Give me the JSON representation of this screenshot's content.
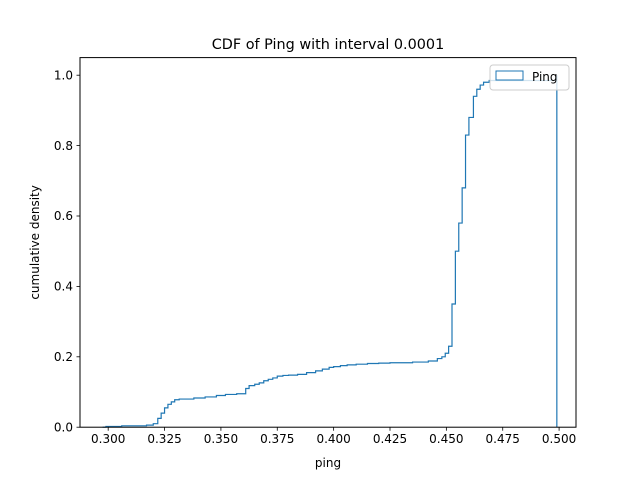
{
  "chart_data": {
    "type": "line",
    "subtype": "step",
    "title": "CDF of Ping with interval 0.0001",
    "xlabel": "ping",
    "ylabel": "cumulative density",
    "xlim": [
      0.2875,
      0.5075
    ],
    "ylim": [
      0,
      1.05
    ],
    "xticks": [
      0.3,
      0.325,
      0.35,
      0.375,
      0.4,
      0.425,
      0.45,
      0.475,
      0.5
    ],
    "xtick_labels": [
      "0.300",
      "0.325",
      "0.350",
      "0.375",
      "0.400",
      "0.425",
      "0.450",
      "0.475",
      "0.500"
    ],
    "yticks": [
      0.0,
      0.2,
      0.4,
      0.6,
      0.8,
      1.0
    ],
    "ytick_labels": [
      "0.0",
      "0.2",
      "0.4",
      "0.6",
      "0.8",
      "1.0"
    ],
    "grid": false,
    "legend": {
      "position": "top-right",
      "entries": [
        "Ping"
      ]
    },
    "series": [
      {
        "name": "Ping",
        "color": "#1f77b4",
        "x": [
          0.2975,
          0.299,
          0.306,
          0.317,
          0.32,
          0.322,
          0.3235,
          0.325,
          0.3265,
          0.328,
          0.3295,
          0.3315,
          0.338,
          0.343,
          0.348,
          0.352,
          0.357,
          0.361,
          0.3625,
          0.365,
          0.367,
          0.369,
          0.371,
          0.373,
          0.375,
          0.3775,
          0.38,
          0.384,
          0.388,
          0.392,
          0.395,
          0.398,
          0.4,
          0.403,
          0.406,
          0.41,
          0.415,
          0.42,
          0.425,
          0.435,
          0.442,
          0.446,
          0.448,
          0.4495,
          0.451,
          0.4525,
          0.454,
          0.4555,
          0.457,
          0.4585,
          0.46,
          0.462,
          0.4635,
          0.465,
          0.4665,
          0.469,
          0.499
        ],
        "y": [
          0.0,
          0.002,
          0.004,
          0.006,
          0.01,
          0.025,
          0.04,
          0.055,
          0.065,
          0.072,
          0.078,
          0.08,
          0.083,
          0.086,
          0.09,
          0.093,
          0.095,
          0.11,
          0.118,
          0.122,
          0.126,
          0.132,
          0.136,
          0.14,
          0.145,
          0.147,
          0.148,
          0.15,
          0.155,
          0.16,
          0.165,
          0.17,
          0.172,
          0.175,
          0.177,
          0.179,
          0.181,
          0.182,
          0.183,
          0.185,
          0.188,
          0.195,
          0.2,
          0.21,
          0.23,
          0.35,
          0.5,
          0.58,
          0.68,
          0.83,
          0.88,
          0.94,
          0.96,
          0.972,
          0.98,
          0.985,
          1.0
        ],
        "end_drop_x": 0.499
      }
    ]
  }
}
